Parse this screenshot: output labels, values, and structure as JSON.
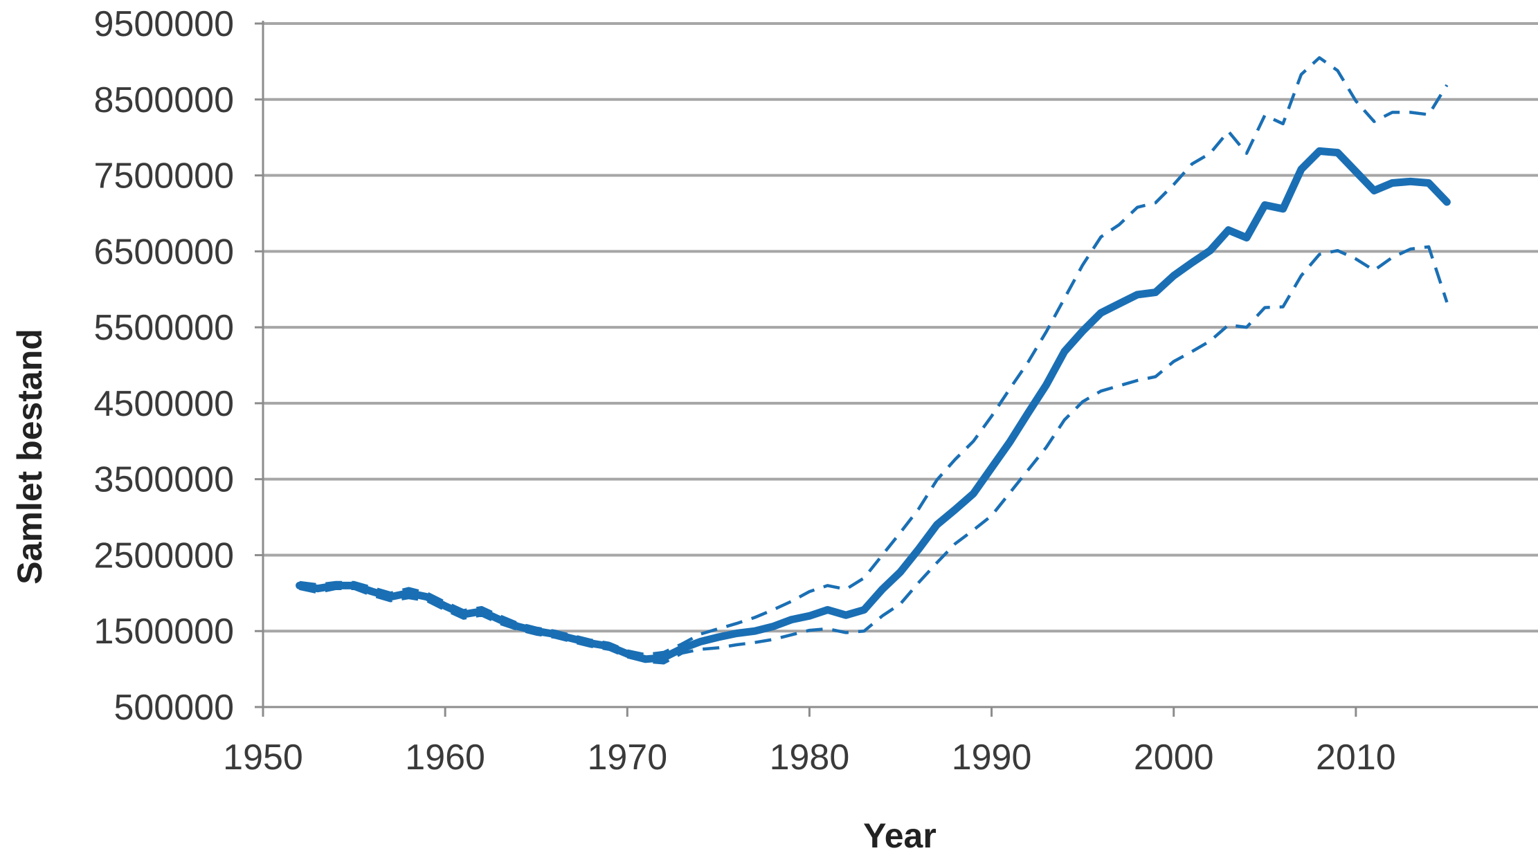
{
  "chart_data": {
    "type": "line",
    "xlabel": "Year",
    "ylabel": "Samlet bestand",
    "xlim": [
      1950,
      2020
    ],
    "ylim": [
      500000,
      9500000
    ],
    "x_ticks": [
      1950,
      1960,
      1970,
      1980,
      1990,
      2000,
      2010
    ],
    "y_ticks": [
      500000,
      1500000,
      2500000,
      3500000,
      4500000,
      5500000,
      6500000,
      7500000,
      8500000,
      9500000
    ],
    "grid": true,
    "legend": "none",
    "colors": {
      "series": "#1a6fb4",
      "grid": "#a6a6a6",
      "axis": "#8c8c8c",
      "text": "#3a3a3a"
    },
    "x": [
      1952,
      1953,
      1954,
      1955,
      1956,
      1957,
      1958,
      1959,
      1960,
      1961,
      1962,
      1963,
      1964,
      1965,
      1966,
      1967,
      1968,
      1969,
      1970,
      1971,
      1972,
      1973,
      1974,
      1975,
      1976,
      1977,
      1978,
      1979,
      1980,
      1981,
      1982,
      1983,
      1984,
      1985,
      1986,
      1987,
      1988,
      1989,
      1990,
      1991,
      1992,
      1993,
      1994,
      1995,
      1996,
      1997,
      1998,
      1999,
      2000,
      2001,
      2002,
      2003,
      2004,
      2005,
      2006,
      2007,
      2008,
      2009,
      2010,
      2011,
      2012,
      2013,
      2014,
      2015
    ],
    "series": [
      {
        "role": "estimate",
        "values": [
          2100000,
          2060000,
          2100000,
          2100000,
          2020000,
          1950000,
          2000000,
          1950000,
          1830000,
          1720000,
          1760000,
          1650000,
          1560000,
          1500000,
          1460000,
          1400000,
          1340000,
          1300000,
          1200000,
          1130000,
          1150000,
          1270000,
          1360000,
          1420000,
          1470000,
          1500000,
          1560000,
          1650000,
          1700000,
          1780000,
          1710000,
          1780000,
          2050000,
          2280000,
          2580000,
          2900000,
          3100000,
          3310000,
          3650000,
          3990000,
          4370000,
          4740000,
          5180000,
          5450000,
          5690000,
          5810000,
          5930000,
          5960000,
          6180000,
          6350000,
          6510000,
          6780000,
          6680000,
          7110000,
          7060000,
          7580000,
          7820000,
          7800000,
          7550000,
          7300000,
          7400000,
          7420000,
          7400000,
          7150000
        ]
      },
      {
        "role": "upper-bound",
        "values": [
          2140000,
          2110000,
          2140000,
          2140000,
          2070000,
          2000000,
          2060000,
          2000000,
          1880000,
          1770000,
          1810000,
          1700000,
          1600000,
          1540000,
          1500000,
          1440000,
          1380000,
          1340000,
          1240000,
          1190000,
          1220000,
          1330000,
          1460000,
          1530000,
          1600000,
          1680000,
          1780000,
          1890000,
          2020000,
          2100000,
          2050000,
          2200000,
          2500000,
          2800000,
          3110000,
          3490000,
          3760000,
          4000000,
          4330000,
          4690000,
          5040000,
          5440000,
          5880000,
          6320000,
          6690000,
          6850000,
          7080000,
          7140000,
          7380000,
          7650000,
          7790000,
          8080000,
          7790000,
          8290000,
          8180000,
          8830000,
          9050000,
          8880000,
          8480000,
          8210000,
          8330000,
          8330000,
          8300000,
          8690000
        ]
      },
      {
        "role": "lower-bound",
        "values": [
          2060000,
          2010000,
          2060000,
          2060000,
          1970000,
          1900000,
          1940000,
          1900000,
          1780000,
          1670000,
          1710000,
          1600000,
          1520000,
          1460000,
          1420000,
          1360000,
          1300000,
          1260000,
          1160000,
          1100000,
          1080000,
          1210000,
          1260000,
          1280000,
          1320000,
          1350000,
          1390000,
          1450000,
          1510000,
          1530000,
          1480000,
          1500000,
          1700000,
          1860000,
          2140000,
          2400000,
          2650000,
          2830000,
          3020000,
          3320000,
          3620000,
          3920000,
          4280000,
          4520000,
          4660000,
          4730000,
          4800000,
          4850000,
          5050000,
          5180000,
          5320000,
          5530000,
          5500000,
          5760000,
          5770000,
          6180000,
          6460000,
          6510000,
          6400000,
          6250000,
          6420000,
          6530000,
          6560000,
          5830000
        ]
      }
    ]
  }
}
